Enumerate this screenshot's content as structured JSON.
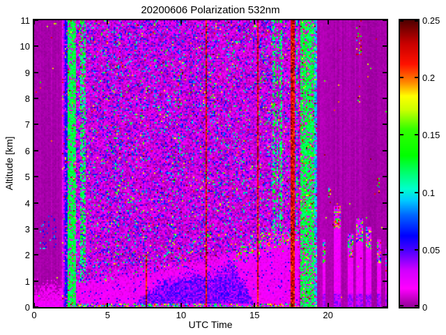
{
  "chart_data": {
    "type": "heatmap",
    "title": "20200606 Polarization 532nm",
    "xlabel": "UTC Time",
    "ylabel": "Altitude [km]",
    "xlim": [
      0,
      24
    ],
    "ylim": [
      0,
      11
    ],
    "xticks": [
      0,
      5,
      10,
      15,
      20
    ],
    "xtick_labels": [
      "0",
      "5",
      "10",
      "15",
      "20"
    ],
    "yticks": [
      0,
      1,
      2,
      3,
      4,
      5,
      6,
      7,
      8,
      9,
      10,
      11
    ],
    "ytick_labels": [
      "0",
      "1",
      "2",
      "3",
      "4",
      "5",
      "6",
      "7",
      "8",
      "9",
      "10",
      "11"
    ],
    "colorbar": {
      "min": 0,
      "max": 0.25,
      "ticks": [
        0,
        0.05,
        0.1,
        0.15,
        0.2,
        0.25
      ],
      "tick_labels": [
        "0",
        "0.05",
        "0.1",
        "0.15",
        "0.2",
        "0.25"
      ]
    },
    "colormap": [
      [
        0.0,
        "#940098"
      ],
      [
        0.016,
        "#ff00ff"
      ],
      [
        0.032,
        "#d000ff"
      ],
      [
        0.05,
        "#4400ff"
      ],
      [
        0.062,
        "#0000ff"
      ],
      [
        0.08,
        "#0066ff"
      ],
      [
        0.093,
        "#00ccff"
      ],
      [
        0.103,
        "#00ffcc"
      ],
      [
        0.118,
        "#00ff66"
      ],
      [
        0.132,
        "#00ff00"
      ],
      [
        0.155,
        "#33ff00"
      ],
      [
        0.172,
        "#ccff00"
      ],
      [
        0.184,
        "#ffff00"
      ],
      [
        0.196,
        "#ff8800"
      ],
      [
        0.212,
        "#ff1100"
      ],
      [
        0.23,
        "#c80000"
      ],
      [
        0.25,
        "#500000"
      ]
    ],
    "regions": {
      "quiet_left": {
        "t": [
          0,
          1.85
        ],
        "base": 0.003,
        "pbl_top": 0.85
      },
      "stripe_band_left": {
        "t": [
          1.85,
          2.89
        ],
        "stripes": [
          [
            1.85,
            1.99,
            0.018
          ],
          [
            1.99,
            2.13,
            0.04
          ],
          [
            2.13,
            2.28,
            0.058
          ],
          [
            2.28,
            2.42,
            0.122
          ],
          [
            2.42,
            2.47,
            0.21
          ],
          [
            2.47,
            2.61,
            0.122
          ],
          [
            2.61,
            2.66,
            0.092
          ],
          [
            2.66,
            2.89,
            0.122
          ]
        ]
      },
      "noise": {
        "t": [
          2.89,
          17.98
        ],
        "exp_scale": 0.033
      },
      "stripe_band_right": {
        "t": [
          17.98,
          19.21
        ],
        "stripes": [
          [
            17.98,
            18.12,
            0.005
          ],
          [
            18.12,
            18.36,
            0.122
          ],
          [
            18.36,
            18.45,
            0.092
          ],
          [
            18.45,
            18.59,
            0.122
          ],
          [
            18.59,
            18.64,
            0.058
          ],
          [
            18.64,
            18.74,
            0.122
          ],
          [
            18.74,
            18.83,
            0.092
          ],
          [
            18.83,
            19.11,
            0.122
          ],
          [
            19.11,
            19.21,
            0.092
          ]
        ]
      },
      "quiet_right": {
        "t": [
          19.21,
          24
        ],
        "base": 0.003
      },
      "pbl_profile": [
        [
          0,
          0.85
        ],
        [
          1.8,
          0.9
        ],
        [
          3,
          0.95
        ],
        [
          5,
          1.15
        ],
        [
          8,
          1.45
        ],
        [
          11,
          1.7
        ],
        [
          13,
          2.0
        ],
        [
          14.5,
          2.5
        ],
        [
          16,
          2.85
        ],
        [
          17.9,
          3.05
        ]
      ],
      "blue_layer": [
        [
          7.0,
          0.2
        ],
        [
          8.5,
          0.9
        ],
        [
          10.5,
          1.2
        ],
        [
          12.5,
          1.3
        ],
        [
          13.5,
          1.6
        ],
        [
          14.6,
          0.6
        ],
        [
          14.9,
          0.2
        ]
      ],
      "red_lines": [
        [
          11.68,
          11.77,
          0,
          11
        ],
        [
          15.15,
          15.25,
          0,
          11
        ],
        [
          15.9,
          15.96,
          0,
          11
        ],
        [
          17.5,
          17.7,
          0,
          11
        ],
        [
          7.6,
          7.68,
          0,
          2.0
        ]
      ],
      "green_streaks": [
        [
          2.89,
          3.55,
          0.45
        ],
        [
          16.2,
          17.95,
          0.28
        ]
      ],
      "left_clouds": [
        [
          0.4,
          1.5,
          2.2,
          3.5
        ]
      ],
      "right_columns": [
        [
          19.59,
          19.87,
          2.6
        ],
        [
          20.44,
          20.87,
          3.9
        ],
        [
          21.39,
          21.72,
          2.8
        ],
        [
          21.87,
          22.34,
          3.4
        ],
        [
          22.58,
          22.91,
          3.1
        ],
        [
          23.29,
          23.62,
          2.6
        ],
        [
          23.86,
          24.0,
          2.2
        ]
      ],
      "right_speckles": [
        [
          21.95,
          22.25,
          9.6,
          10.8
        ],
        [
          21.98,
          22.2,
          7.8,
          8.5
        ],
        [
          20.05,
          20.2,
          4.0,
          4.6
        ],
        [
          23.3,
          23.5,
          4.3,
          5.0
        ]
      ]
    }
  }
}
